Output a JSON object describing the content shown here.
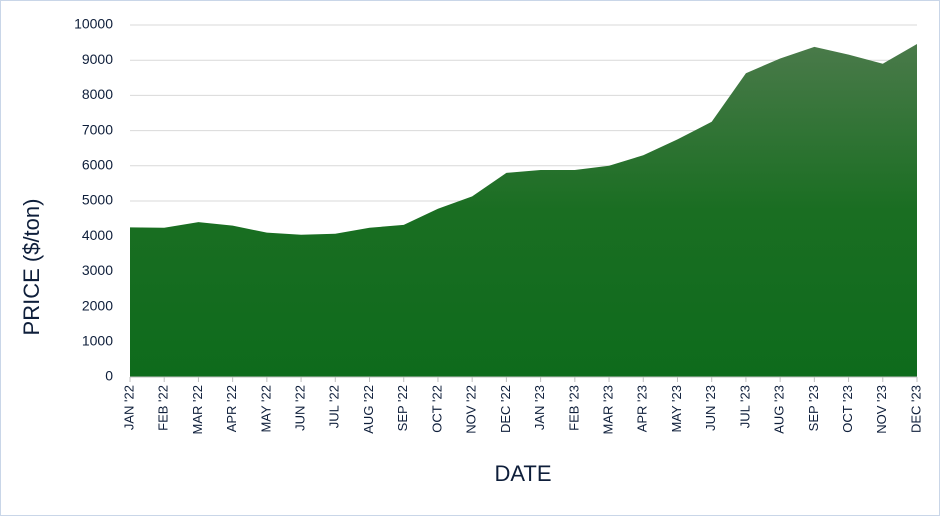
{
  "chart_data": {
    "type": "area",
    "title": "",
    "xlabel": "DATE",
    "ylabel": "PRICE ($/ton)",
    "ylim": [
      0,
      10000
    ],
    "yticks": [
      0,
      1000,
      2000,
      3000,
      4000,
      5000,
      6000,
      7000,
      8000,
      9000,
      10000
    ],
    "grid": true,
    "legend": "none",
    "fill_color_top": "#4a7a4a",
    "fill_color_bottom": "#0e6b1c",
    "categories": [
      "JAN '22",
      "FEB '22",
      "MAR '22",
      "APR '22",
      "MAY '22",
      "JUN '22",
      "JUL '22",
      "AUG '22",
      "SEP '22",
      "OCT '22",
      "NOV '22",
      "DEC '22",
      "JAN '23",
      "FEB '23",
      "MAR '23",
      "APR '23",
      "MAY '23",
      "JUN '23",
      "JUL '23",
      "AUG '23",
      "SEP '23",
      "OCT '23",
      "NOV '23",
      "DEC '23"
    ],
    "values": [
      4250,
      4240,
      4400,
      4300,
      4100,
      4040,
      4070,
      4240,
      4320,
      4780,
      5130,
      5800,
      5880,
      5880,
      6000,
      6300,
      6750,
      7250,
      8630,
      9050,
      9380,
      9160,
      8900,
      9460
    ]
  }
}
